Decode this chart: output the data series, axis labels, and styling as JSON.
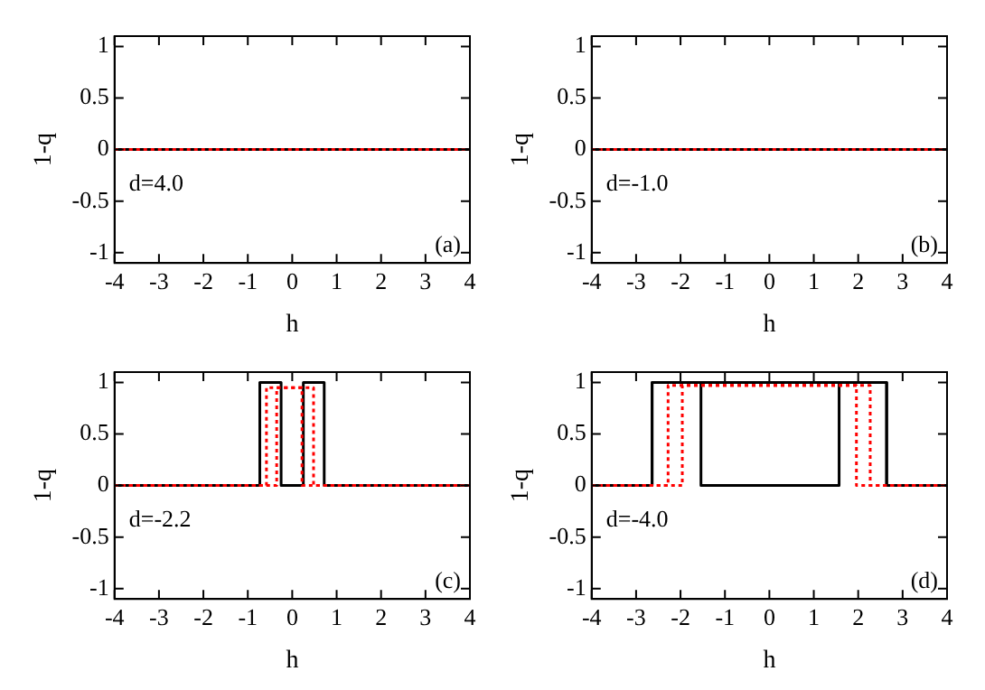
{
  "chart_data": [
    {
      "type": "line",
      "xlabel": "h",
      "ylabel": "1-q",
      "xlim": [
        -4,
        4
      ],
      "xticks": [
        -4,
        -3,
        -2,
        -1,
        0,
        1,
        2,
        3,
        4
      ],
      "ylim": [
        -1.1,
        1.1
      ],
      "yticks": [
        -1,
        -0.5,
        0,
        0.5,
        1
      ],
      "grid": false,
      "legend": false,
      "marker": "none",
      "annotations": [
        "d=4.0",
        "(a)"
      ],
      "series": [
        {
          "color": "#000000",
          "line_style": "solid",
          "x": [
            -4,
            4
          ],
          "values": [
            0,
            0
          ]
        },
        {
          "color": "#ff0000",
          "line_style": "dotted",
          "x": [
            -4,
            4
          ],
          "values": [
            0,
            0
          ]
        }
      ]
    },
    {
      "type": "line",
      "xlabel": "h",
      "ylabel": "1-q",
      "xlim": [
        -4,
        4
      ],
      "xticks": [
        -4,
        -3,
        -2,
        -1,
        0,
        1,
        2,
        3,
        4
      ],
      "ylim": [
        -1.1,
        1.1
      ],
      "yticks": [
        -1,
        -0.5,
        0,
        0.5,
        1
      ],
      "grid": false,
      "legend": false,
      "marker": "none",
      "annotations": [
        "d=-1.0",
        "(b)"
      ],
      "series": [
        {
          "color": "#000000",
          "line_style": "solid",
          "x": [
            -4,
            4
          ],
          "values": [
            0,
            0
          ]
        },
        {
          "color": "#ff0000",
          "line_style": "dotted",
          "x": [
            -4,
            4
          ],
          "values": [
            0,
            0
          ]
        }
      ]
    },
    {
      "type": "line",
      "xlabel": "h",
      "ylabel": "1-q",
      "xlim": [
        -4,
        4
      ],
      "xticks": [
        -4,
        -3,
        -2,
        -1,
        0,
        1,
        2,
        3,
        4
      ],
      "ylim": [
        -1.1,
        1.1
      ],
      "yticks": [
        -1,
        -0.5,
        0,
        0.5,
        1
      ],
      "grid": false,
      "legend": false,
      "marker": "none",
      "annotations": [
        "d=-2.2",
        "(c)"
      ],
      "series": [
        {
          "color": "#000000",
          "line_style": "solid",
          "x": [
            -4,
            -0.73,
            -0.73,
            -0.25,
            -0.25,
            0.25,
            0.25,
            0.72,
            0.72,
            4
          ],
          "values": [
            0,
            0,
            1,
            1,
            0,
            0,
            1,
            1,
            0,
            0
          ]
        },
        {
          "color": "#ff0000",
          "line_style": "dotted",
          "x": [
            -4,
            -0.58,
            -0.58,
            0.48,
            0.48,
            4
          ],
          "values": [
            0,
            0,
            0.95,
            0.95,
            0,
            0
          ]
        },
        {
          "color": "#ff0000",
          "line_style": "dotted",
          "x": [
            -4,
            -0.35,
            -0.35,
            0.22,
            0.22,
            4
          ],
          "values": [
            0,
            0,
            0.95,
            0.95,
            0,
            0
          ]
        }
      ]
    },
    {
      "type": "line",
      "xlabel": "h",
      "ylabel": "1-q",
      "xlim": [
        -4,
        4
      ],
      "xticks": [
        -4,
        -3,
        -2,
        -1,
        0,
        1,
        2,
        3,
        4
      ],
      "ylim": [
        -1.1,
        1.1
      ],
      "yticks": [
        -1,
        -0.5,
        0,
        0.5,
        1
      ],
      "grid": false,
      "legend": false,
      "marker": "none",
      "annotations": [
        "d=-4.0",
        "(d)"
      ],
      "series": [
        {
          "color": "#000000",
          "line_style": "solid",
          "x": [
            -4,
            -2.64,
            -2.64,
            2.64,
            2.64,
            4
          ],
          "values": [
            0,
            0,
            1,
            1,
            0,
            0
          ]
        },
        {
          "color": "#000000",
          "line_style": "solid",
          "x": [
            -4,
            -2.64,
            -2.64,
            -1.54,
            -1.54,
            1.57,
            1.57,
            2.64,
            2.64,
            4
          ],
          "values": [
            0,
            0,
            1,
            1,
            0,
            0,
            1,
            1,
            0,
            0
          ]
        },
        {
          "color": "#ff0000",
          "line_style": "dotted",
          "x": [
            -4,
            -2.28,
            -2.28,
            2.27,
            2.27,
            4
          ],
          "values": [
            0,
            0,
            0.97,
            0.97,
            0,
            0
          ]
        },
        {
          "color": "#ff0000",
          "line_style": "dotted",
          "x": [
            -4,
            -1.96,
            -1.96,
            1.96,
            1.96,
            4
          ],
          "values": [
            0,
            0,
            0.97,
            0.97,
            0,
            0
          ]
        }
      ]
    }
  ]
}
